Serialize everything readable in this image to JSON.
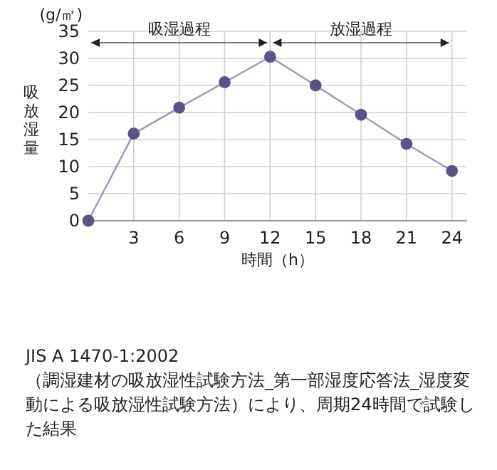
{
  "chart_data": {
    "type": "line",
    "ylabel": "吸放湿量",
    "xlabel": "時間（h）",
    "x": [
      0,
      3,
      6,
      9,
      12,
      15,
      18,
      21,
      24
    ],
    "series": [
      {
        "color": "#5b5287",
        "values": [
          0,
          16.1,
          20.9,
          25.6,
          30.3,
          25,
          19.6,
          14.2,
          9.2
        ]
      }
    ],
    "xlim": [
      0,
      25
    ],
    "xticks": [
      3,
      6,
      9,
      12,
      15,
      18,
      21,
      24
    ],
    "ylim": [
      0,
      35
    ],
    "yticks": [
      0,
      5,
      10,
      15,
      20,
      25,
      30,
      35
    ],
    "grid": true,
    "marker": "circle",
    "line_style": "solid",
    "annotations": [
      "(g/㎡)",
      "吸湿過程",
      "放湿過程",
      "JIS A 1470-1:2002\n（調湿建材の吸放湿性試験方法_第一部湿度応答法_湿度変動による吸放湿性試験方法）により、周期24時間で試験した結果"
    ]
  }
}
